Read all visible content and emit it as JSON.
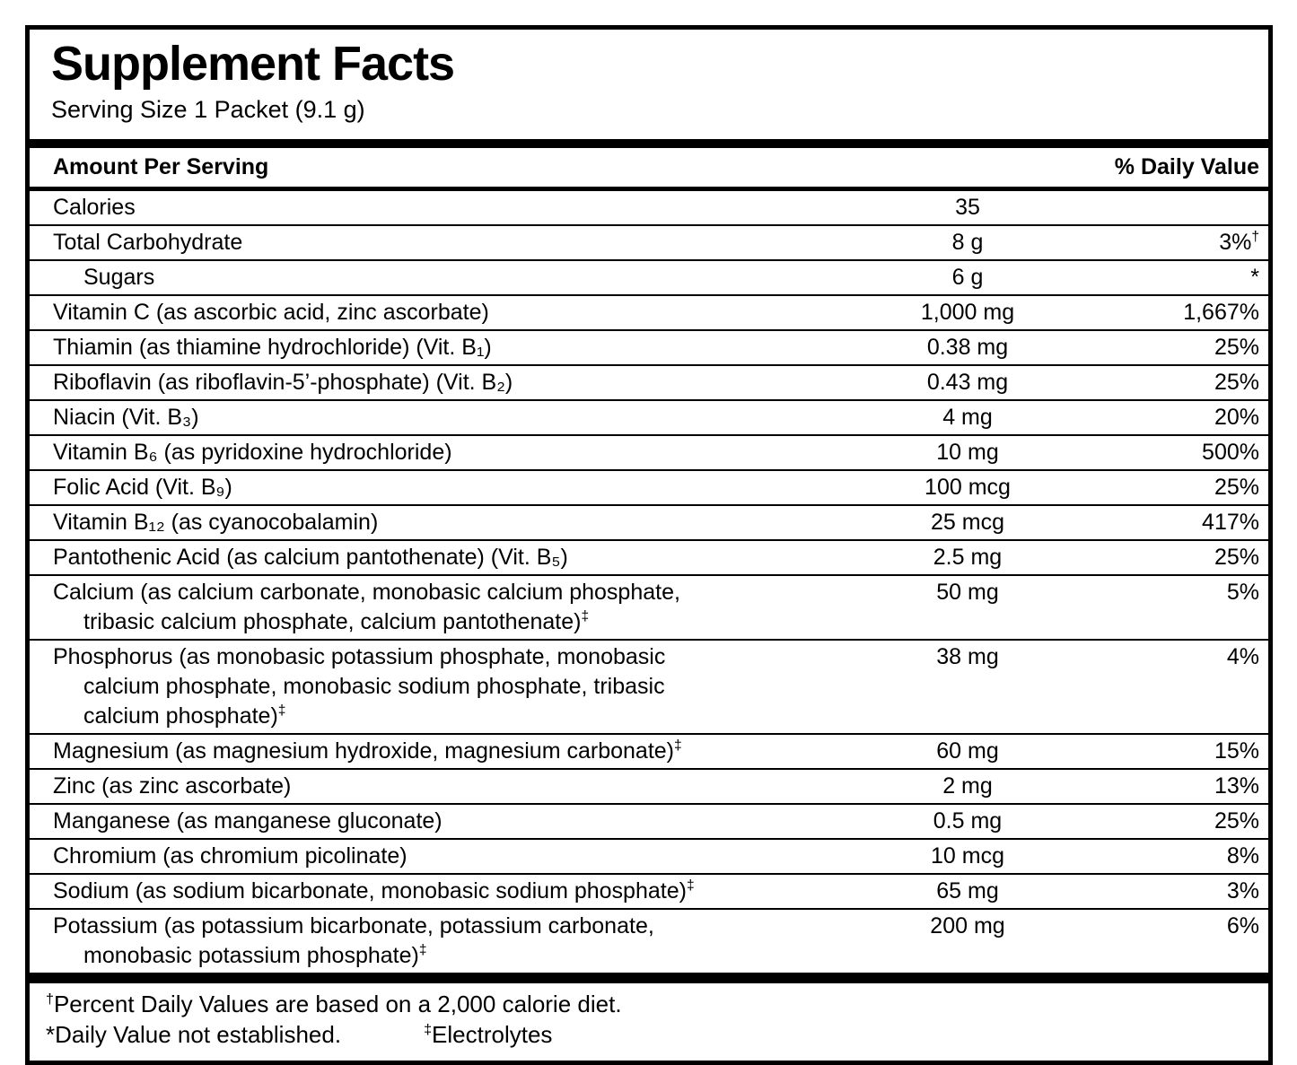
{
  "label": {
    "title": "Supplement Facts",
    "serving_size": "Serving Size 1 Packet (9.1 g)",
    "columns": {
      "amount_header": "Amount Per Serving",
      "dv_header": "% Daily Value"
    },
    "rows": [
      {
        "name": "Calories",
        "amount": "35",
        "dv": ""
      },
      {
        "name": "Total Carbohydrate",
        "amount": "8 g",
        "dv": "3%",
        "dv_sup": "†"
      },
      {
        "name": "Sugars",
        "indent": true,
        "amount": "6 g",
        "dv": "*"
      },
      {
        "name": "Vitamin C (as ascorbic acid, zinc ascorbate)",
        "amount": "1,000 mg",
        "dv": "1,667%"
      },
      {
        "name": "Thiamin (as thiamine hydrochloride) (Vit. B₁)",
        "amount": "0.38 mg",
        "dv": "25%"
      },
      {
        "name": "Riboflavin (as riboflavin-5’-phosphate) (Vit. B₂)",
        "amount": "0.43 mg",
        "dv": "25%"
      },
      {
        "name": "Niacin (Vit. B₃)",
        "amount": "4 mg",
        "dv": "20%"
      },
      {
        "name": "Vitamin B₆ (as pyridoxine hydrochloride)",
        "amount": "10 mg",
        "dv": "500%"
      },
      {
        "name": "Folic Acid (Vit. B₉)",
        "amount": "100 mcg",
        "dv": "25%"
      },
      {
        "name": "Vitamin B₁₂ (as cyanocobalamin)",
        "amount": "25 mcg",
        "dv": "417%"
      },
      {
        "name": "Pantothenic Acid (as calcium pantothenate) (Vit. B₅)",
        "amount": "2.5 mg",
        "dv": "25%"
      },
      {
        "name": "Calcium (as calcium carbonate, monobasic calcium phosphate,\ntribasic calcium phosphate, calcium pantothenate)",
        "name_sup": "‡",
        "amount": "50 mg",
        "dv": "5%"
      },
      {
        "name": "Phosphorus (as monobasic potassium phosphate, monobasic\ncalcium phosphate, monobasic sodium phosphate, tribasic\ncalcium phosphate)",
        "name_sup": "‡",
        "amount": "38 mg",
        "dv": "4%"
      },
      {
        "name": "Magnesium (as magnesium hydroxide, magnesium carbonate)",
        "name_sup": "‡",
        "amount": "60 mg",
        "dv": "15%"
      },
      {
        "name": "Zinc (as zinc ascorbate)",
        "amount": "2 mg",
        "dv": "13%"
      },
      {
        "name": "Manganese (as manganese gluconate)",
        "amount": "0.5 mg",
        "dv": "25%"
      },
      {
        "name": "Chromium (as chromium picolinate)",
        "amount": "10 mcg",
        "dv": "8%"
      },
      {
        "name": "Sodium (as sodium bicarbonate, monobasic sodium phosphate)",
        "name_sup": "‡",
        "amount": "65 mg",
        "dv": "3%"
      },
      {
        "name": "Potassium (as potassium bicarbonate, potassium carbonate,\nmonobasic potassium phosphate)",
        "name_sup": "‡",
        "amount": "200 mg",
        "dv": "6%"
      }
    ],
    "footnotes": {
      "dagger_marker": "†",
      "dagger_text": "Percent Daily Values are based on a 2,000 calorie diet.",
      "asterisk_text": "*Daily Value not established.",
      "electrolytes_marker": "‡",
      "electrolytes_text": "Electrolytes"
    },
    "colors": {
      "text": "#000000",
      "background": "#ffffff",
      "rule": "#000000"
    }
  }
}
